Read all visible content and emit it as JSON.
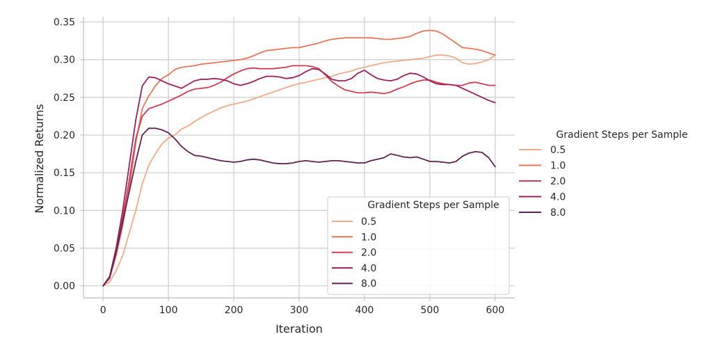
{
  "chart_data": {
    "type": "line",
    "xlabel": "Iteration",
    "ylabel": "Normalized Returns",
    "xlim": [
      -30,
      630
    ],
    "ylim": [
      -0.016,
      0.357
    ],
    "xticks": [
      0,
      100,
      200,
      300,
      400,
      500,
      600
    ],
    "xtick_labels": [
      "0",
      "100",
      "200",
      "300",
      "400",
      "500",
      "600"
    ],
    "yticks": [
      0.0,
      0.05,
      0.1,
      0.15,
      0.2,
      0.25,
      0.3,
      0.35
    ],
    "ytick_labels": [
      "0.00",
      "0.05",
      "0.10",
      "0.15",
      "0.20",
      "0.25",
      "0.30",
      "0.35"
    ],
    "grid": true,
    "legend_title": "Gradient Steps per Sample",
    "legend_placements": [
      "lower-right",
      "outside-right"
    ],
    "series": [
      {
        "name": "0.5",
        "color": "#f3a986",
        "points": [
          [
            0,
            0
          ],
          [
            10,
            0.005
          ],
          [
            20,
            0.02
          ],
          [
            30,
            0.04
          ],
          [
            40,
            0.07
          ],
          [
            50,
            0.1
          ],
          [
            60,
            0.135
          ],
          [
            70,
            0.16
          ],
          [
            80,
            0.175
          ],
          [
            90,
            0.188
          ],
          [
            100,
            0.196
          ],
          [
            110,
            0.2
          ],
          [
            120,
            0.208
          ],
          [
            130,
            0.212
          ],
          [
            140,
            0.218
          ],
          [
            150,
            0.223
          ],
          [
            160,
            0.228
          ],
          [
            170,
            0.232
          ],
          [
            180,
            0.236
          ],
          [
            190,
            0.239
          ],
          [
            200,
            0.241
          ],
          [
            210,
            0.243
          ],
          [
            220,
            0.245
          ],
          [
            230,
            0.248
          ],
          [
            240,
            0.251
          ],
          [
            250,
            0.254
          ],
          [
            260,
            0.257
          ],
          [
            270,
            0.26
          ],
          [
            280,
            0.263
          ],
          [
            290,
            0.266
          ],
          [
            300,
            0.268
          ],
          [
            310,
            0.27
          ],
          [
            320,
            0.272
          ],
          [
            330,
            0.274
          ],
          [
            340,
            0.276
          ],
          [
            350,
            0.278
          ],
          [
            360,
            0.281
          ],
          [
            370,
            0.283
          ],
          [
            380,
            0.285
          ],
          [
            390,
            0.288
          ],
          [
            400,
            0.29
          ],
          [
            410,
            0.292
          ],
          [
            420,
            0.294
          ],
          [
            430,
            0.296
          ],
          [
            440,
            0.297
          ],
          [
            450,
            0.298
          ],
          [
            460,
            0.299
          ],
          [
            470,
            0.3
          ],
          [
            480,
            0.301
          ],
          [
            490,
            0.302
          ],
          [
            500,
            0.304
          ],
          [
            510,
            0.306
          ],
          [
            520,
            0.306
          ],
          [
            530,
            0.305
          ],
          [
            540,
            0.302
          ],
          [
            550,
            0.296
          ],
          [
            560,
            0.294
          ],
          [
            570,
            0.295
          ],
          [
            580,
            0.297
          ],
          [
            590,
            0.3
          ],
          [
            600,
            0.306
          ]
        ]
      },
      {
        "name": "1.0",
        "color": "#eb7655",
        "points": [
          [
            0,
            0
          ],
          [
            10,
            0.01
          ],
          [
            20,
            0.04
          ],
          [
            30,
            0.08
          ],
          [
            40,
            0.13
          ],
          [
            50,
            0.19
          ],
          [
            60,
            0.235
          ],
          [
            70,
            0.252
          ],
          [
            80,
            0.265
          ],
          [
            90,
            0.275
          ],
          [
            100,
            0.28
          ],
          [
            110,
            0.287
          ],
          [
            120,
            0.29
          ],
          [
            130,
            0.291
          ],
          [
            140,
            0.292
          ],
          [
            150,
            0.294
          ],
          [
            160,
            0.295
          ],
          [
            170,
            0.296
          ],
          [
            180,
            0.297
          ],
          [
            190,
            0.298
          ],
          [
            200,
            0.299
          ],
          [
            210,
            0.3
          ],
          [
            220,
            0.302
          ],
          [
            230,
            0.305
          ],
          [
            240,
            0.309
          ],
          [
            250,
            0.312
          ],
          [
            260,
            0.313
          ],
          [
            270,
            0.314
          ],
          [
            280,
            0.315
          ],
          [
            290,
            0.316
          ],
          [
            300,
            0.316
          ],
          [
            310,
            0.318
          ],
          [
            320,
            0.32
          ],
          [
            330,
            0.322
          ],
          [
            340,
            0.325
          ],
          [
            350,
            0.327
          ],
          [
            360,
            0.328
          ],
          [
            370,
            0.329
          ],
          [
            380,
            0.329
          ],
          [
            390,
            0.329
          ],
          [
            400,
            0.329
          ],
          [
            410,
            0.329
          ],
          [
            420,
            0.328
          ],
          [
            430,
            0.327
          ],
          [
            440,
            0.327
          ],
          [
            450,
            0.328
          ],
          [
            460,
            0.329
          ],
          [
            470,
            0.331
          ],
          [
            480,
            0.335
          ],
          [
            490,
            0.338
          ],
          [
            500,
            0.339
          ],
          [
            510,
            0.338
          ],
          [
            520,
            0.334
          ],
          [
            530,
            0.328
          ],
          [
            540,
            0.322
          ],
          [
            550,
            0.316
          ],
          [
            560,
            0.315
          ],
          [
            570,
            0.314
          ],
          [
            580,
            0.312
          ],
          [
            590,
            0.309
          ],
          [
            600,
            0.306
          ]
        ]
      },
      {
        "name": "2.0",
        "color": "#d33b4e",
        "points": [
          [
            0,
            0
          ],
          [
            10,
            0.01
          ],
          [
            20,
            0.045
          ],
          [
            30,
            0.09
          ],
          [
            40,
            0.14
          ],
          [
            50,
            0.195
          ],
          [
            60,
            0.225
          ],
          [
            70,
            0.235
          ],
          [
            80,
            0.238
          ],
          [
            90,
            0.241
          ],
          [
            100,
            0.245
          ],
          [
            110,
            0.249
          ],
          [
            120,
            0.253
          ],
          [
            130,
            0.258
          ],
          [
            140,
            0.261
          ],
          [
            150,
            0.262
          ],
          [
            160,
            0.263
          ],
          [
            170,
            0.266
          ],
          [
            180,
            0.27
          ],
          [
            190,
            0.276
          ],
          [
            200,
            0.281
          ],
          [
            210,
            0.285
          ],
          [
            220,
            0.288
          ],
          [
            230,
            0.289
          ],
          [
            240,
            0.288
          ],
          [
            250,
            0.288
          ],
          [
            260,
            0.288
          ],
          [
            270,
            0.289
          ],
          [
            280,
            0.29
          ],
          [
            290,
            0.292
          ],
          [
            300,
            0.292
          ],
          [
            310,
            0.292
          ],
          [
            320,
            0.291
          ],
          [
            330,
            0.288
          ],
          [
            340,
            0.28
          ],
          [
            350,
            0.271
          ],
          [
            360,
            0.265
          ],
          [
            370,
            0.26
          ],
          [
            380,
            0.258
          ],
          [
            390,
            0.256
          ],
          [
            400,
            0.256
          ],
          [
            410,
            0.257
          ],
          [
            420,
            0.256
          ],
          [
            430,
            0.255
          ],
          [
            440,
            0.257
          ],
          [
            450,
            0.261
          ],
          [
            460,
            0.264
          ],
          [
            470,
            0.268
          ],
          [
            480,
            0.271
          ],
          [
            490,
            0.273
          ],
          [
            500,
            0.273
          ],
          [
            510,
            0.27
          ],
          [
            520,
            0.268
          ],
          [
            530,
            0.267
          ],
          [
            540,
            0.266
          ],
          [
            550,
            0.266
          ],
          [
            560,
            0.269
          ],
          [
            570,
            0.27
          ],
          [
            580,
            0.268
          ],
          [
            590,
            0.266
          ],
          [
            600,
            0.266
          ]
        ]
      },
      {
        "name": "4.0",
        "color": "#a11a5b",
        "points": [
          [
            0,
            0
          ],
          [
            10,
            0.012
          ],
          [
            20,
            0.05
          ],
          [
            30,
            0.1
          ],
          [
            40,
            0.16
          ],
          [
            50,
            0.22
          ],
          [
            60,
            0.265
          ],
          [
            70,
            0.277
          ],
          [
            80,
            0.276
          ],
          [
            90,
            0.272
          ],
          [
            100,
            0.268
          ],
          [
            110,
            0.265
          ],
          [
            120,
            0.262
          ],
          [
            130,
            0.267
          ],
          [
            140,
            0.272
          ],
          [
            150,
            0.274
          ],
          [
            160,
            0.274
          ],
          [
            170,
            0.275
          ],
          [
            180,
            0.274
          ],
          [
            190,
            0.272
          ],
          [
            200,
            0.268
          ],
          [
            210,
            0.266
          ],
          [
            220,
            0.268
          ],
          [
            230,
            0.271
          ],
          [
            240,
            0.275
          ],
          [
            250,
            0.278
          ],
          [
            260,
            0.278
          ],
          [
            270,
            0.277
          ],
          [
            280,
            0.275
          ],
          [
            290,
            0.276
          ],
          [
            300,
            0.279
          ],
          [
            310,
            0.284
          ],
          [
            320,
            0.288
          ],
          [
            330,
            0.287
          ],
          [
            340,
            0.281
          ],
          [
            350,
            0.274
          ],
          [
            360,
            0.272
          ],
          [
            370,
            0.272
          ],
          [
            380,
            0.275
          ],
          [
            390,
            0.282
          ],
          [
            400,
            0.286
          ],
          [
            410,
            0.28
          ],
          [
            420,
            0.275
          ],
          [
            430,
            0.273
          ],
          [
            440,
            0.272
          ],
          [
            450,
            0.274
          ],
          [
            460,
            0.279
          ],
          [
            470,
            0.282
          ],
          [
            480,
            0.281
          ],
          [
            490,
            0.277
          ],
          [
            500,
            0.272
          ],
          [
            510,
            0.268
          ],
          [
            520,
            0.267
          ],
          [
            530,
            0.267
          ],
          [
            540,
            0.266
          ],
          [
            550,
            0.262
          ],
          [
            560,
            0.258
          ],
          [
            570,
            0.254
          ],
          [
            580,
            0.25
          ],
          [
            590,
            0.246
          ],
          [
            600,
            0.243
          ]
        ]
      },
      {
        "name": "8.0",
        "color": "#611f53",
        "points": [
          [
            0,
            0
          ],
          [
            10,
            0.012
          ],
          [
            20,
            0.045
          ],
          [
            30,
            0.085
          ],
          [
            40,
            0.125
          ],
          [
            50,
            0.165
          ],
          [
            60,
            0.2
          ],
          [
            70,
            0.209
          ],
          [
            80,
            0.209
          ],
          [
            90,
            0.207
          ],
          [
            100,
            0.203
          ],
          [
            110,
            0.195
          ],
          [
            120,
            0.185
          ],
          [
            130,
            0.178
          ],
          [
            140,
            0.173
          ],
          [
            150,
            0.172
          ],
          [
            160,
            0.17
          ],
          [
            170,
            0.168
          ],
          [
            180,
            0.166
          ],
          [
            190,
            0.165
          ],
          [
            200,
            0.164
          ],
          [
            210,
            0.165
          ],
          [
            220,
            0.167
          ],
          [
            230,
            0.168
          ],
          [
            240,
            0.167
          ],
          [
            250,
            0.165
          ],
          [
            260,
            0.163
          ],
          [
            270,
            0.162
          ],
          [
            280,
            0.162
          ],
          [
            290,
            0.163
          ],
          [
            300,
            0.165
          ],
          [
            310,
            0.166
          ],
          [
            320,
            0.165
          ],
          [
            330,
            0.164
          ],
          [
            340,
            0.165
          ],
          [
            350,
            0.166
          ],
          [
            360,
            0.166
          ],
          [
            370,
            0.165
          ],
          [
            380,
            0.164
          ],
          [
            390,
            0.163
          ],
          [
            400,
            0.163
          ],
          [
            410,
            0.166
          ],
          [
            420,
            0.168
          ],
          [
            430,
            0.17
          ],
          [
            440,
            0.175
          ],
          [
            450,
            0.173
          ],
          [
            460,
            0.171
          ],
          [
            470,
            0.17
          ],
          [
            480,
            0.171
          ],
          [
            490,
            0.168
          ],
          [
            500,
            0.165
          ],
          [
            510,
            0.165
          ],
          [
            520,
            0.164
          ],
          [
            530,
            0.163
          ],
          [
            540,
            0.165
          ],
          [
            550,
            0.172
          ],
          [
            560,
            0.176
          ],
          [
            570,
            0.178
          ],
          [
            580,
            0.177
          ],
          [
            590,
            0.17
          ],
          [
            600,
            0.158
          ]
        ]
      }
    ]
  }
}
